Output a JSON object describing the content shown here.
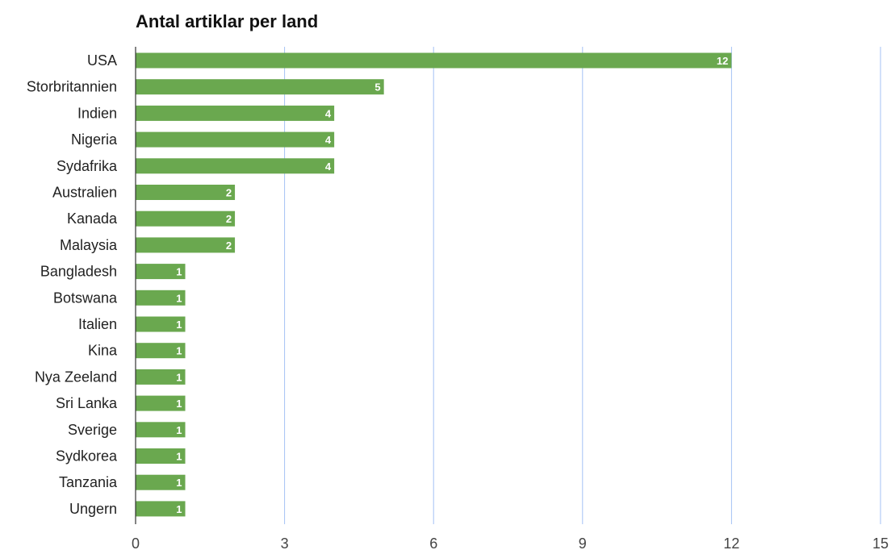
{
  "chart_data": {
    "type": "bar",
    "orientation": "horizontal",
    "title": "Antal artiklar per land",
    "xlabel": "",
    "ylabel": "",
    "categories": [
      "USA",
      "Storbritannien",
      "Indien",
      "Nigeria",
      "Sydafrika",
      "Australien",
      "Kanada",
      "Malaysia",
      "Bangladesh",
      "Botswana",
      "Italien",
      "Kina",
      "Nya Zeeland",
      "Sri Lanka",
      "Sverige",
      "Sydkorea",
      "Tanzania",
      "Ungern"
    ],
    "values": [
      12,
      5,
      4,
      4,
      4,
      2,
      2,
      2,
      1,
      1,
      1,
      1,
      1,
      1,
      1,
      1,
      1,
      1
    ],
    "xlim": [
      0,
      15
    ],
    "xticks": [
      0,
      3,
      6,
      9,
      12,
      15
    ],
    "grid": true,
    "data_labels": true,
    "legend": "none",
    "colors": {
      "bar": "#6aa84f",
      "grid": "#a4c2f4",
      "axis": "#333333"
    }
  }
}
